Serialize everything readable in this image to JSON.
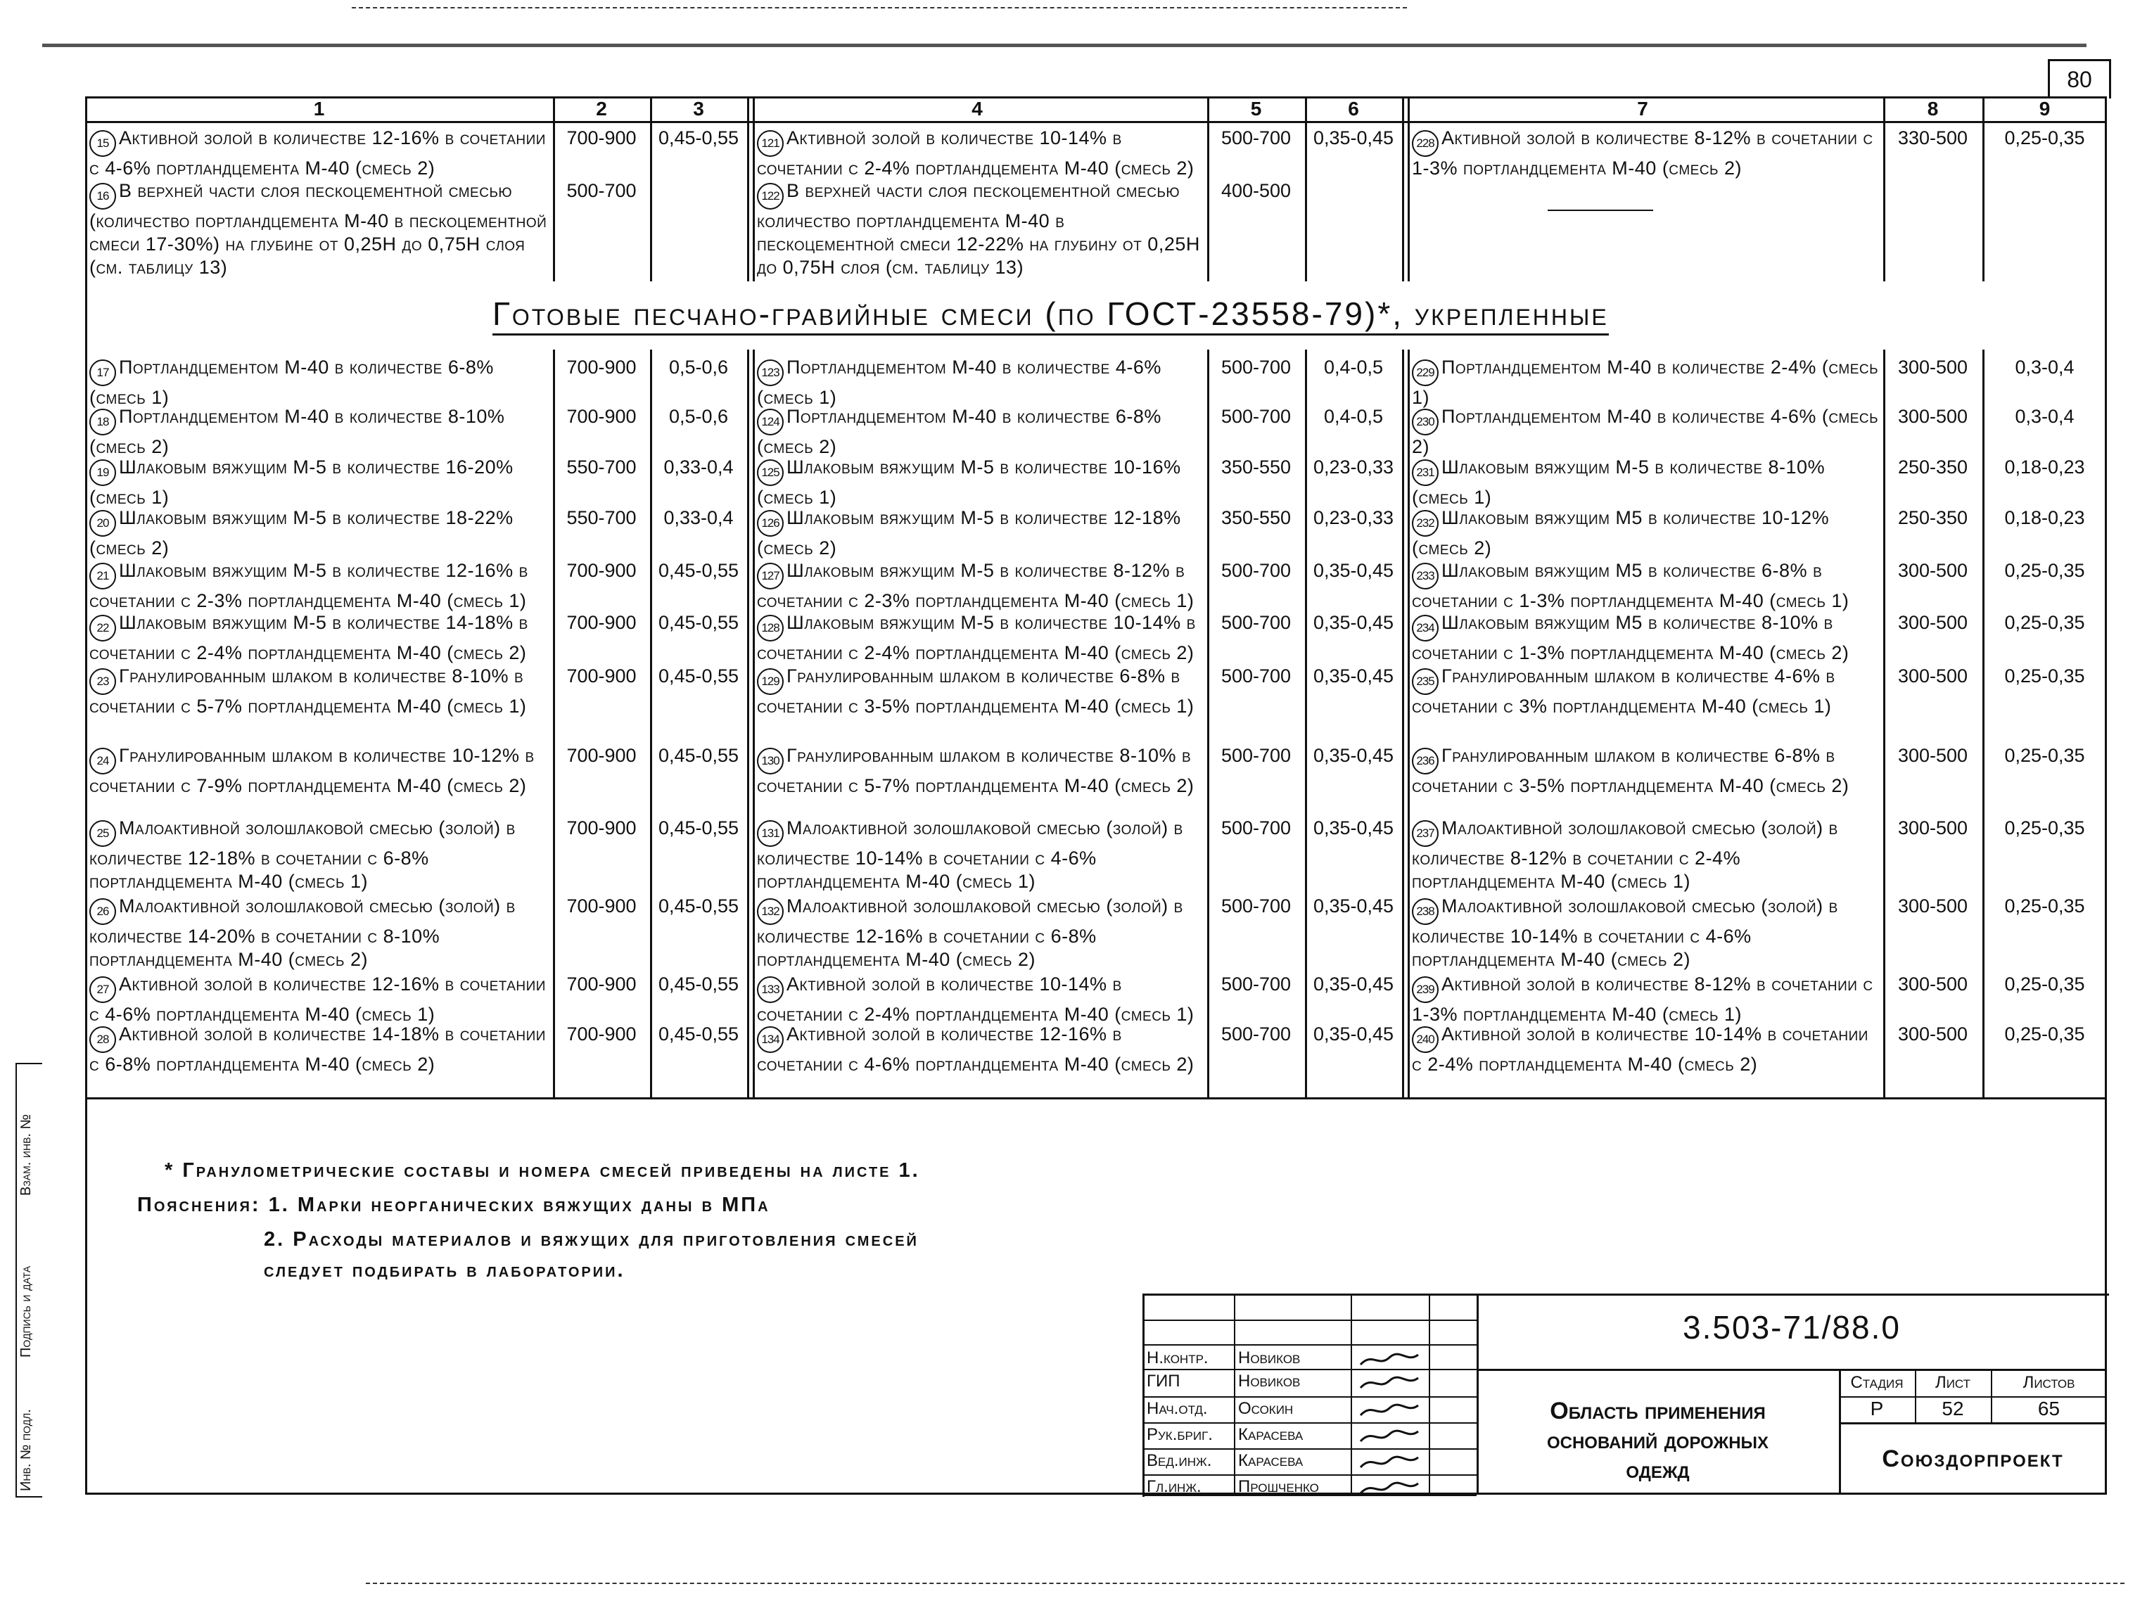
{
  "page_number": "80",
  "column_headers": [
    "1",
    "2",
    "3",
    "4",
    "5",
    "6",
    "7",
    "8",
    "9"
  ],
  "top_rows": [
    {
      "g1": {
        "n": "15",
        "text": "Активной золой в количестве 12-16% в сочетании с 4-6% портландцемента М-40 (смесь 2)",
        "v1": "700-900",
        "v2": "0,45-0,55"
      },
      "g2": {
        "n": "121",
        "text": "Активной золой в количестве 10-14% в сочетании с 2-4% портландцемента М-40 (смесь 2)",
        "v1": "500-700",
        "v2": "0,35-0,45"
      },
      "g3": {
        "n": "228",
        "text": "Активной золой в количестве 8-12% в сочетании с 1-3% портландцемента М-40 (смесь 2)",
        "v1": "330-500",
        "v2": "0,25-0,35"
      }
    },
    {
      "g1": {
        "n": "16",
        "text": "В верхней части слоя пескоцементной смесью (количество портландцемента М-40 в пескоцементной смеси 17-30%) на глубине от 0,25Н до 0,75Н слоя (см. таблицу 13)",
        "v1": "500-700",
        "v2": ""
      },
      "g2": {
        "n": "122",
        "text": "В верхней части слоя пескоцементной смесью количество портландцемента М-40 в пескоцементной смеси 12-22% на глубину от 0,25Н до 0,75Н слоя (см. таблицу 13)",
        "v1": "400-500",
        "v2": ""
      },
      "g3": {
        "n": "",
        "text": "",
        "v1": "",
        "v2": ""
      }
    }
  ],
  "section_title": "Готовые песчано-гравийные смеси (по ГОСТ-23558-79)*, укрепленные",
  "rows": [
    {
      "g1": {
        "n": "17",
        "text": "Портландцементом М-40 в количестве 6-8% (смесь 1)",
        "v1": "700-900",
        "v2": "0,5-0,6"
      },
      "g2": {
        "n": "123",
        "text": "Портландцементом М-40 в количестве 4-6% (смесь 1)",
        "v1": "500-700",
        "v2": "0,4-0,5"
      },
      "g3": {
        "n": "229",
        "text": "Портландцементом М-40 в количестве 2-4% (смесь 1)",
        "v1": "300-500",
        "v2": "0,3-0,4"
      }
    },
    {
      "g1": {
        "n": "18",
        "text": "Портландцементом М-40 в количестве 8-10% (смесь 2)",
        "v1": "700-900",
        "v2": "0,5-0,6"
      },
      "g2": {
        "n": "124",
        "text": "Портландцементом М-40 в количестве 6-8% (смесь 2)",
        "v1": "500-700",
        "v2": "0,4-0,5"
      },
      "g3": {
        "n": "230",
        "text": "Портландцементом М-40 в количестве 4-6% (смесь 2)",
        "v1": "300-500",
        "v2": "0,3-0,4"
      }
    },
    {
      "g1": {
        "n": "19",
        "text": "Шлаковым вяжущим М-5 в количестве 16-20% (смесь 1)",
        "v1": "550-700",
        "v2": "0,33-0,4"
      },
      "g2": {
        "n": "125",
        "text": "Шлаковым вяжущим М-5 в количестве 10-16% (смесь 1)",
        "v1": "350-550",
        "v2": "0,23-0,33"
      },
      "g3": {
        "n": "231",
        "text": "Шлаковым вяжущим М-5 в количестве 8-10% (смесь 1)",
        "v1": "250-350",
        "v2": "0,18-0,23"
      }
    },
    {
      "g1": {
        "n": "20",
        "text": "Шлаковым вяжущим М-5 в количестве 18-22% (смесь 2)",
        "v1": "550-700",
        "v2": "0,33-0,4"
      },
      "g2": {
        "n": "126",
        "text": "Шлаковым вяжущим М-5 в количестве 12-18% (смесь 2)",
        "v1": "350-550",
        "v2": "0,23-0,33"
      },
      "g3": {
        "n": "232",
        "text": "Шлаковым вяжущим М5 в количестве 10-12% (смесь 2)",
        "v1": "250-350",
        "v2": "0,18-0,23"
      }
    },
    {
      "g1": {
        "n": "21",
        "text": "Шлаковым вяжущим М-5 в количестве 12-16% в сочетании с 2-3% портландцемента М-40 (смесь 1)",
        "v1": "700-900",
        "v2": "0,45-0,55"
      },
      "g2": {
        "n": "127",
        "text": "Шлаковым вяжущим М-5 в количестве 8-12% в сочетании с 2-3% портландцемента М-40 (смесь 1)",
        "v1": "500-700",
        "v2": "0,35-0,45"
      },
      "g3": {
        "n": "233",
        "text": "Шлаковым вяжущим М5 в количестве 6-8% в сочетании с 1-3% портландцемента М-40 (смесь 1)",
        "v1": "300-500",
        "v2": "0,25-0,35"
      }
    },
    {
      "g1": {
        "n": "22",
        "text": "Шлаковым вяжущим М-5 в количестве 14-18% в сочетании с 2-4% портландцемента М-40 (смесь 2)",
        "v1": "700-900",
        "v2": "0,45-0,55"
      },
      "g2": {
        "n": "128",
        "text": "Шлаковым вяжущим М-5 в количестве 10-14% в сочетании с 2-4% портландцемента М-40 (смесь 2)",
        "v1": "500-700",
        "v2": "0,35-0,45"
      },
      "g3": {
        "n": "234",
        "text": "Шлаковым вяжущим М5 в количестве 8-10% в сочетании с 1-3% портландцемента М-40 (смесь 2)",
        "v1": "300-500",
        "v2": "0,25-0,35"
      }
    },
    {
      "g1": {
        "n": "23",
        "text": "Гранулированным шлаком в количестве 8-10% в сочетании с 5-7% портландцемента М-40 (смесь 1)",
        "v1": "700-900",
        "v2": "0,45-0,55"
      },
      "g2": {
        "n": "129",
        "text": "Гранулированным шлаком в количестве 6-8% в сочетании с 3-5% портландцемента М-40 (смесь 1)",
        "v1": "500-700",
        "v2": "0,35-0,45"
      },
      "g3": {
        "n": "235",
        "text": "Гранулированным шлаком в количестве 4-6% в сочетании с 3% портландцемента М-40 (смесь 1)",
        "v1": "300-500",
        "v2": "0,25-0,35"
      }
    },
    {
      "g1": {
        "n": "24",
        "text": "Гранулированным шлаком в количестве 10-12% в сочетании с 7-9% портландцемента М-40 (смесь 2)",
        "v1": "700-900",
        "v2": "0,45-0,55"
      },
      "g2": {
        "n": "130",
        "text": "Гранулированным шлаком в количестве 8-10% в сочетании с 5-7% портландцемента М-40 (смесь 2)",
        "v1": "500-700",
        "v2": "0,35-0,45"
      },
      "g3": {
        "n": "236",
        "text": "Гранулированным шлаком в количестве 6-8% в сочетании с 3-5% портландцемента М-40 (смесь 2)",
        "v1": "300-500",
        "v2": "0,25-0,35"
      }
    },
    {
      "g1": {
        "n": "25",
        "text": "Малоактивной золошлаковой смесью (золой) в количестве 12-18% в сочетании с 6-8% портландцемента М-40 (смесь 1)",
        "v1": "700-900",
        "v2": "0,45-0,55"
      },
      "g2": {
        "n": "131",
        "text": "Малоактивной золошлаковой смесью (золой) в количестве 10-14% в сочетании с 4-6% портландцемента М-40 (смесь 1)",
        "v1": "500-700",
        "v2": "0,35-0,45"
      },
      "g3": {
        "n": "237",
        "text": "Малоактивной золошлаковой смесью (золой) в количестве 8-12% в сочетании с 2-4% портландцемента М-40 (смесь 1)",
        "v1": "300-500",
        "v2": "0,25-0,35"
      }
    },
    {
      "g1": {
        "n": "26",
        "text": "Малоактивной золошлаковой смесью (золой) в количестве 14-20% в сочетании с 8-10% портландцемента М-40 (смесь 2)",
        "v1": "700-900",
        "v2": "0,45-0,55"
      },
      "g2": {
        "n": "132",
        "text": "Малоактивной золошлаковой смесью (золой) в количестве 12-16% в сочетании с 6-8% портландцемента М-40 (смесь 2)",
        "v1": "500-700",
        "v2": "0,35-0,45"
      },
      "g3": {
        "n": "238",
        "text": "Малоактивной золошлаковой смесью (золой) в количестве 10-14% в сочетании с 4-6% портландцемента М-40 (смесь 2)",
        "v1": "300-500",
        "v2": "0,25-0,35"
      }
    },
    {
      "g1": {
        "n": "27",
        "text": "Активной золой в количестве 12-16% в сочетании с 4-6% портландцемента М-40 (смесь 1)",
        "v1": "700-900",
        "v2": "0,45-0,55"
      },
      "g2": {
        "n": "133",
        "text": "Активной золой в количестве 10-14% в сочетании с 2-4% портландцемента М-40 (смесь 1)",
        "v1": "500-700",
        "v2": "0,35-0,45"
      },
      "g3": {
        "n": "239",
        "text": "Активной золой в количестве 8-12% в сочетании с 1-3% портландцемента М-40 (смесь 1)",
        "v1": "300-500",
        "v2": "0,25-0,35"
      }
    },
    {
      "g1": {
        "n": "28",
        "text": "Активной золой в количестве 14-18% в сочетании с 6-8% портландцемента М-40 (смесь 2)",
        "v1": "700-900",
        "v2": "0,45-0,55"
      },
      "g2": {
        "n": "134",
        "text": "Активной золой в количестве 12-16% в сочетании с 4-6% портландцемента М-40 (смесь 2)",
        "v1": "500-700",
        "v2": "0,35-0,45"
      },
      "g3": {
        "n": "240",
        "text": "Активной золой в количестве 10-14% в сочетании с 2-4% портландцемента М-40 (смесь 2)",
        "v1": "300-500",
        "v2": "0,25-0,35"
      }
    }
  ],
  "notes": {
    "footnote": "* Гранулометрические составы и номера смесей приведены на листе 1.",
    "explanations_1": "Пояснения: 1. Марки неорганических вяжущих даны в МПа",
    "explanations_2": "2. Расходы материалов и вяжущих для приготовления смесей",
    "explanations_3": "следует подбирать в лаборатории."
  },
  "title_block": {
    "designation": "3.503-71/88.0",
    "title": [
      "Область применения",
      "оснований дорожных",
      "одежд"
    ],
    "organization": "Союздорпроект",
    "stage_label": "Стадия",
    "sheet_label": "Лист",
    "sheets_label": "Листов",
    "stage": "Р",
    "sheet": "52",
    "sheets": "65",
    "signers": [
      {
        "role": "Н.контр.",
        "name": "Новиков"
      },
      {
        "role": "ГИП",
        "name": "Новиков"
      },
      {
        "role": "Нач.отд.",
        "name": "Осокин"
      },
      {
        "role": "Рук.бриг.",
        "name": "Карасева"
      },
      {
        "role": "Вед.инж.",
        "name": "Карасева"
      },
      {
        "role": "Гл.инж.",
        "name": "Прошченко"
      }
    ]
  },
  "side_stamp": [
    "Инв. № подл.",
    "Подпись и дата",
    "Взам. инв. №"
  ]
}
